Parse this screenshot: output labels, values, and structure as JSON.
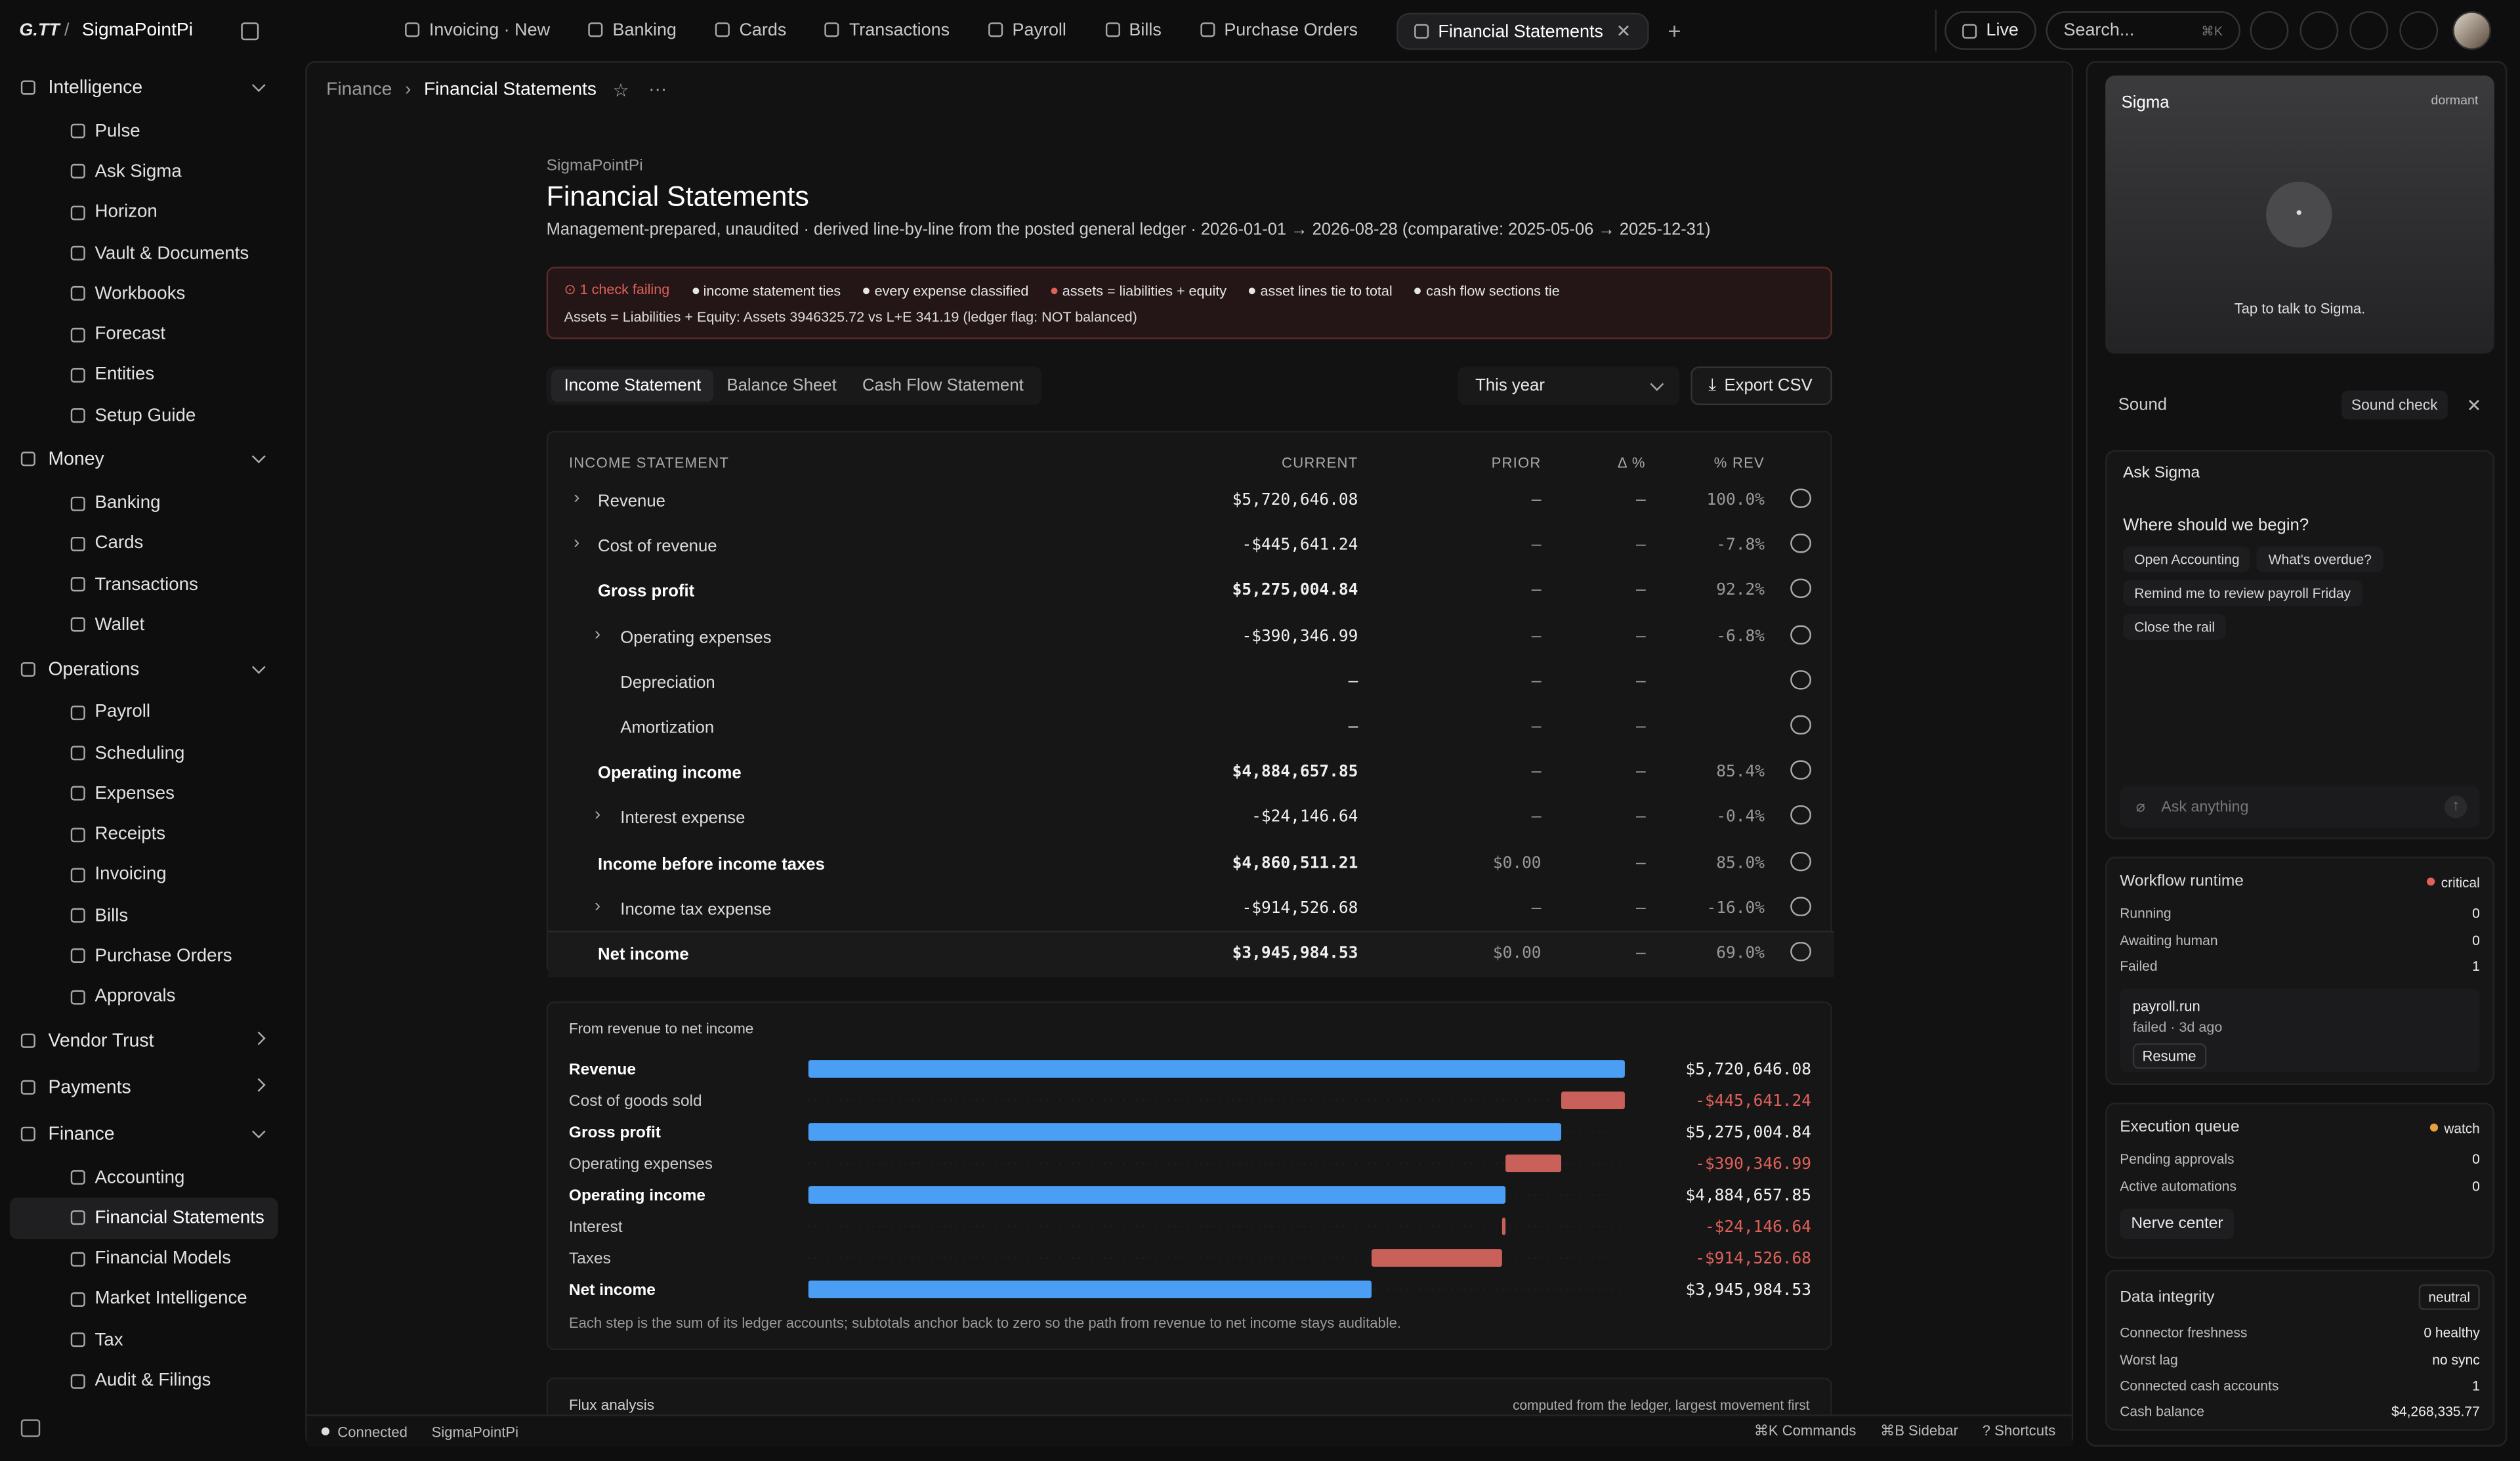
{
  "topbar": {
    "logo": "G.TT",
    "workspace": "SigmaPointPi",
    "tabs": [
      "Invoicing · New",
      "Banking",
      "Cards",
      "Transactions",
      "Payroll",
      "Bills",
      "Purchase Orders",
      "Financial Statements"
    ],
    "live": "Live",
    "search": "Search...",
    "search_shortcut": "⌘K"
  },
  "sidebar": [
    {
      "name": "Intelligence",
      "items": [
        "Pulse",
        "Ask Sigma",
        "Horizon",
        "Vault & Documents",
        "Workbooks",
        "Forecast",
        "Entities",
        "Setup Guide"
      ]
    },
    {
      "name": "Money",
      "items": [
        "Banking",
        "Cards",
        "Transactions",
        "Wallet"
      ]
    },
    {
      "name": "Operations",
      "items": [
        "Payroll",
        "Scheduling",
        "Expenses",
        "Receipts",
        "Invoicing",
        "Bills",
        "Purchase Orders",
        "Approvals"
      ]
    },
    {
      "name": "Vendor Trust",
      "items": []
    },
    {
      "name": "Payments",
      "items": []
    },
    {
      "name": "Finance",
      "items": [
        "Accounting",
        "Financial Statements",
        "Financial Models",
        "Market Intelligence",
        "Tax",
        "Audit & Filings"
      ]
    }
  ],
  "breadcrumb": [
    "Finance",
    "Financial Statements"
  ],
  "header": {
    "org": "SigmaPointPi",
    "title": "Financial Statements",
    "subtitle": "Management-prepared, unaudited · derived line-by-line from the posted general ledger · 2026-01-01 → 2026-08-28 (comparative: 2025-05-06 → 2025-12-31)"
  },
  "checks": {
    "status": "1 check failing",
    "items": [
      {
        "label": "income statement ties",
        "color": "#e6e6e6"
      },
      {
        "label": "every expense classified",
        "color": "#e6e6e6"
      },
      {
        "label": "assets = liabilities + equity",
        "color": "#e0605a"
      },
      {
        "label": "asset lines tie to total",
        "color": "#e6e6e6"
      },
      {
        "label": "cash flow sections tie",
        "color": "#e6e6e6"
      }
    ],
    "detail": "Assets = Liabilities + Equity: Assets 3946325.72 vs L+E 341.19 (ledger flag: NOT balanced)"
  },
  "statement_tabs": [
    "Income Statement",
    "Balance Sheet",
    "Cash Flow Statement"
  ],
  "period": "This year",
  "export": "Export CSV",
  "table": {
    "columns": [
      "INCOME STATEMENT",
      "CURRENT",
      "PRIOR",
      "Δ %",
      "% REV"
    ],
    "rows": [
      [
        "Revenue",
        "$5,720,646.08",
        "—",
        "—",
        "100.0%"
      ],
      [
        "Cost of revenue",
        "-$445,641.24",
        "—",
        "—",
        "-7.8%"
      ],
      [
        "Gross profit",
        "$5,275,004.84",
        "—",
        "—",
        "92.2%"
      ],
      [
        "Operating expenses",
        "-$390,346.99",
        "—",
        "—",
        "-6.8%"
      ],
      [
        "Depreciation",
        "—",
        "—",
        "—",
        ""
      ],
      [
        "Amortization",
        "—",
        "—",
        "—",
        ""
      ],
      [
        "Operating income",
        "$4,884,657.85",
        "—",
        "—",
        "85.4%"
      ],
      [
        "Interest expense",
        "-$24,146.64",
        "—",
        "—",
        "-0.4%"
      ],
      [
        "Income before income taxes",
        "$4,860,511.21",
        "$0.00",
        "—",
        "85.0%"
      ],
      [
        "Income tax expense",
        "-$914,526.68",
        "—",
        "—",
        "-16.0%"
      ],
      [
        "Net income",
        "$3,945,984.53",
        "$0.00",
        "—",
        "69.0%"
      ]
    ]
  },
  "chart_data": {
    "type": "waterfall",
    "title": "From revenue to net income",
    "categories": [
      "Revenue",
      "Cost of goods sold",
      "Gross profit",
      "Operating expenses",
      "Operating income",
      "Interest",
      "Taxes",
      "Net income"
    ],
    "values": [
      5720646.08,
      -445641.24,
      5275004.84,
      -390346.99,
      4884657.85,
      -24146.64,
      -914526.68,
      3945984.53
    ],
    "value_labels": [
      "$5,720,646.08",
      "-$445,641.24",
      "$5,275,004.84",
      "-$390,346.99",
      "$4,884,657.85",
      "-$24,146.64",
      "-$914,526.68",
      "$3,945,984.53"
    ],
    "colors": [
      "#4a9ff5",
      "#c9605a",
      "#4a9ff5",
      "#c9605a",
      "#4a9ff5",
      "#c9605a",
      "#c9605a",
      "#4a9ff5"
    ],
    "note": "Each step is the sum of its ledger accounts; subtotals anchor back to zero so the path from revenue to net income stays auditable."
  },
  "flux": {
    "title": "Flux analysis",
    "note": "computed from the ledger, largest movement first"
  },
  "statusbar": {
    "connection": "Connected",
    "workspace": "SigmaPointPi",
    "shortcuts": [
      "⌘K Commands",
      "⌘B Sidebar",
      "? Shortcuts"
    ]
  },
  "rail": {
    "sigma": {
      "title": "Sigma",
      "state": "dormant",
      "hint": "Tap to talk to Sigma."
    },
    "sound": {
      "label": "Sound",
      "action": "Sound check"
    },
    "ask": {
      "title": "Ask Sigma",
      "prompt": "Where should we begin?",
      "chips": [
        "Open Accounting",
        "What's overdue?",
        "Remind me to review payroll Friday",
        "Close the rail"
      ],
      "placeholder": "Ask anything"
    },
    "workflow": {
      "title": "Workflow runtime",
      "status": "critical",
      "color": "#e0605a",
      "rows": [
        [
          "Running",
          "0"
        ],
        [
          "Awaiting human",
          "0"
        ],
        [
          "Failed",
          "1"
        ]
      ],
      "job": "payroll.run",
      "job_state": "failed · 3d ago",
      "action": "Resume"
    },
    "queue": {
      "title": "Execution queue",
      "status": "watch",
      "color": "#e8a23a",
      "rows": [
        [
          "Pending approvals",
          "0"
        ],
        [
          "Active automations",
          "0"
        ]
      ],
      "action": "Nerve center"
    },
    "integrity": {
      "title": "Data integrity",
      "status": "neutral",
      "rows": [
        [
          "Connector freshness",
          "0 healthy"
        ],
        [
          "Worst lag",
          "no sync"
        ],
        [
          "Connected cash accounts",
          "1"
        ],
        [
          "Cash balance",
          "$4,268,335.77"
        ]
      ]
    }
  }
}
